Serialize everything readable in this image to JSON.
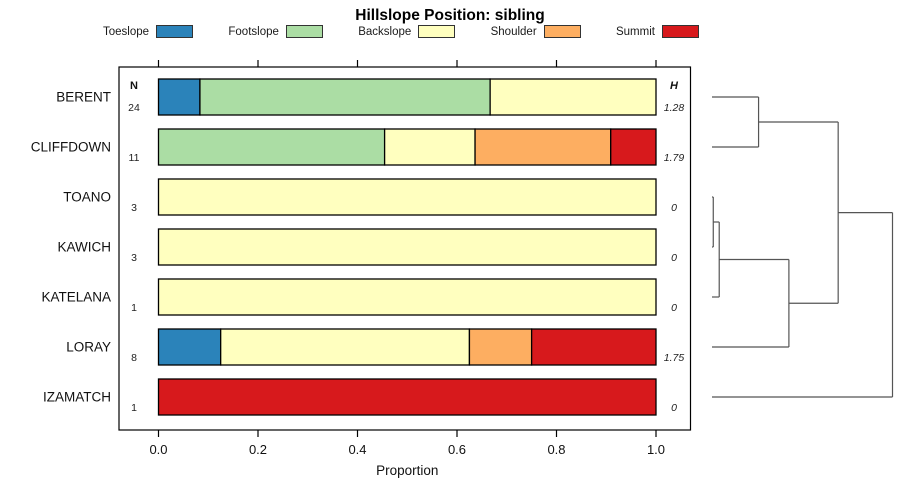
{
  "title": "Hillslope Position: sibling",
  "legend": {
    "items": [
      {
        "label": "Toeslope",
        "color": "#2B83BA"
      },
      {
        "label": "Footslope",
        "color": "#ABDDA4"
      },
      {
        "label": "Backslope",
        "color": "#FFFFBF"
      },
      {
        "label": "Shoulder",
        "color": "#FDAE61"
      },
      {
        "label": "Summit",
        "color": "#D7191C"
      }
    ]
  },
  "columns": {
    "n_header": "N",
    "h_header": "H"
  },
  "chart_data": {
    "type": "bar",
    "subtype": "horizontal_stacked_proportion",
    "title": "Hillslope Position: sibling",
    "xlabel": "Proportion",
    "xlim": [
      0,
      1
    ],
    "x_ticks": [
      0.0,
      0.2,
      0.4,
      0.6,
      0.8,
      1.0
    ],
    "series_order": [
      "Toeslope",
      "Footslope",
      "Backslope",
      "Shoulder",
      "Summit"
    ],
    "rows": [
      {
        "name": "BERENT",
        "N": 24,
        "H": "1.28",
        "proportions": {
          "Toeslope": 0.0833,
          "Footslope": 0.5833,
          "Backslope": 0.3334
        }
      },
      {
        "name": "CLIFFDOWN",
        "N": 11,
        "H": "1.79",
        "proportions": {
          "Footslope": 0.4545,
          "Backslope": 0.1818,
          "Shoulder": 0.2727,
          "Summit": 0.091
        }
      },
      {
        "name": "TOANO",
        "N": 3,
        "H": "0",
        "proportions": {
          "Backslope": 1.0
        }
      },
      {
        "name": "KAWICH",
        "N": 3,
        "H": "0",
        "proportions": {
          "Backslope": 1.0
        }
      },
      {
        "name": "KATELANA",
        "N": 1,
        "H": "0",
        "proportions": {
          "Backslope": 1.0
        }
      },
      {
        "name": "LORAY",
        "N": 8,
        "H": "1.75",
        "proportions": {
          "Toeslope": 0.125,
          "Backslope": 0.5,
          "Shoulder": 0.125,
          "Summit": 0.25
        }
      },
      {
        "name": "IZAMATCH",
        "N": 1,
        "H": "0",
        "proportions": {
          "Summit": 1.0
        }
      }
    ],
    "dendrogram": {
      "merges": [
        {
          "id": "m1",
          "a": "TOANO",
          "b": "KAWICH",
          "height": 0.007
        },
        {
          "id": "m2",
          "a": "m1",
          "b": "KATELANA",
          "height": 0.04
        },
        {
          "id": "m3",
          "a": "BERENT",
          "b": "CLIFFDOWN",
          "height": 0.258
        },
        {
          "id": "m4",
          "a": "m2",
          "b": "LORAY",
          "height": 0.426
        },
        {
          "id": "m5",
          "a": "m3",
          "b": "m4",
          "height": 0.699
        },
        {
          "id": "m6",
          "a": "m5",
          "b": "IZAMATCH",
          "height": 1.0
        }
      ]
    }
  }
}
